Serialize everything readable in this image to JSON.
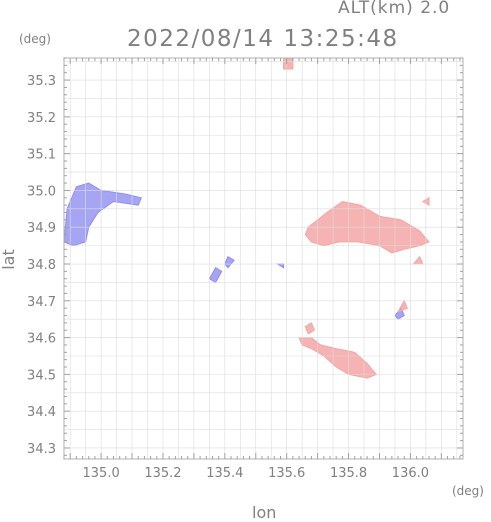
{
  "header": {
    "altitude_label": "ALT(km) 2.0",
    "timestamp": "2022/08/14 13:25:48"
  },
  "axes": {
    "x_unit": "(deg)",
    "y_unit": "(deg)",
    "x_label": "lon",
    "y_label": "lat",
    "x_ticks": [
      "135.0",
      "135.2",
      "135.4",
      "135.6",
      "135.8",
      "136.0"
    ],
    "y_ticks": [
      "34.3",
      "34.4",
      "34.5",
      "34.6",
      "34.7",
      "34.8",
      "34.9",
      "35.0",
      "35.1",
      "35.2",
      "35.3"
    ],
    "x_range": [
      134.88,
      136.17
    ],
    "y_range": [
      34.27,
      35.36
    ]
  },
  "colors": {
    "approaching": "#8f8ff0",
    "receding": "#f4a6a6",
    "grid": "#dcdcdc",
    "axis_text": "#808080"
  },
  "chart_data": {
    "type": "heatmap",
    "title": "2022/08/14 13:25:48",
    "xlabel": "lon",
    "ylabel": "lat",
    "xlim": [
      134.88,
      136.17
    ],
    "ylim": [
      34.27,
      35.36
    ],
    "regions": [
      {
        "color": "approaching",
        "points": [
          [
            134.88,
            34.86
          ],
          [
            134.89,
            34.95
          ],
          [
            134.92,
            35.01
          ],
          [
            134.96,
            35.02
          ],
          [
            135.0,
            35.0
          ],
          [
            135.08,
            34.99
          ],
          [
            135.13,
            34.98
          ],
          [
            135.12,
            34.96
          ],
          [
            135.04,
            34.97
          ],
          [
            134.99,
            34.94
          ],
          [
            134.96,
            34.9
          ],
          [
            134.95,
            34.86
          ],
          [
            134.91,
            34.85
          ]
        ]
      },
      {
        "color": "approaching",
        "points": [
          [
            135.35,
            34.76
          ],
          [
            135.37,
            34.79
          ],
          [
            135.39,
            34.78
          ],
          [
            135.37,
            34.75
          ]
        ]
      },
      {
        "color": "approaching",
        "points": [
          [
            135.4,
            34.8
          ],
          [
            135.41,
            34.82
          ],
          [
            135.43,
            34.81
          ],
          [
            135.41,
            34.79
          ]
        ]
      },
      {
        "color": "approaching",
        "points": [
          [
            135.57,
            34.8
          ],
          [
            135.59,
            34.8
          ],
          [
            135.59,
            34.79
          ]
        ]
      },
      {
        "color": "approaching",
        "points": [
          [
            135.95,
            34.66
          ],
          [
            135.97,
            34.68
          ],
          [
            135.98,
            34.66
          ],
          [
            135.96,
            34.65
          ]
        ]
      },
      {
        "color": "receding",
        "points": [
          [
            135.59,
            35.36
          ],
          [
            135.62,
            35.36
          ],
          [
            135.62,
            35.33
          ],
          [
            135.59,
            35.33
          ]
        ]
      },
      {
        "color": "receding",
        "points": [
          [
            135.67,
            34.9
          ],
          [
            135.73,
            34.94
          ],
          [
            135.78,
            34.97
          ],
          [
            135.84,
            34.96
          ],
          [
            135.9,
            34.93
          ],
          [
            135.97,
            34.92
          ],
          [
            136.03,
            34.89
          ],
          [
            136.06,
            34.86
          ],
          [
            136.03,
            34.85
          ],
          [
            135.98,
            34.84
          ],
          [
            135.94,
            34.83
          ],
          [
            135.9,
            34.85
          ],
          [
            135.83,
            34.86
          ],
          [
            135.77,
            34.86
          ],
          [
            135.72,
            34.85
          ],
          [
            135.68,
            34.86
          ],
          [
            135.66,
            34.88
          ]
        ]
      },
      {
        "color": "receding",
        "points": [
          [
            136.04,
            34.97
          ],
          [
            136.06,
            34.98
          ],
          [
            136.06,
            34.96
          ]
        ]
      },
      {
        "color": "receding",
        "points": [
          [
            136.01,
            34.8
          ],
          [
            136.03,
            34.82
          ],
          [
            136.04,
            34.8
          ]
        ]
      },
      {
        "color": "receding",
        "points": [
          [
            135.96,
            34.67
          ],
          [
            135.98,
            34.7
          ],
          [
            135.99,
            34.68
          ]
        ]
      },
      {
        "color": "receding",
        "points": [
          [
            135.64,
            34.6
          ],
          [
            135.68,
            34.6
          ],
          [
            135.71,
            34.58
          ],
          [
            135.76,
            34.57
          ],
          [
            135.82,
            34.56
          ],
          [
            135.86,
            34.53
          ],
          [
            135.89,
            34.5
          ],
          [
            135.86,
            34.49
          ],
          [
            135.8,
            34.5
          ],
          [
            135.76,
            34.52
          ],
          [
            135.72,
            34.55
          ],
          [
            135.68,
            34.57
          ],
          [
            135.65,
            34.58
          ]
        ]
      },
      {
        "color": "receding",
        "points": [
          [
            135.66,
            34.63
          ],
          [
            135.68,
            34.64
          ],
          [
            135.69,
            34.62
          ],
          [
            135.67,
            34.61
          ]
        ]
      }
    ]
  }
}
